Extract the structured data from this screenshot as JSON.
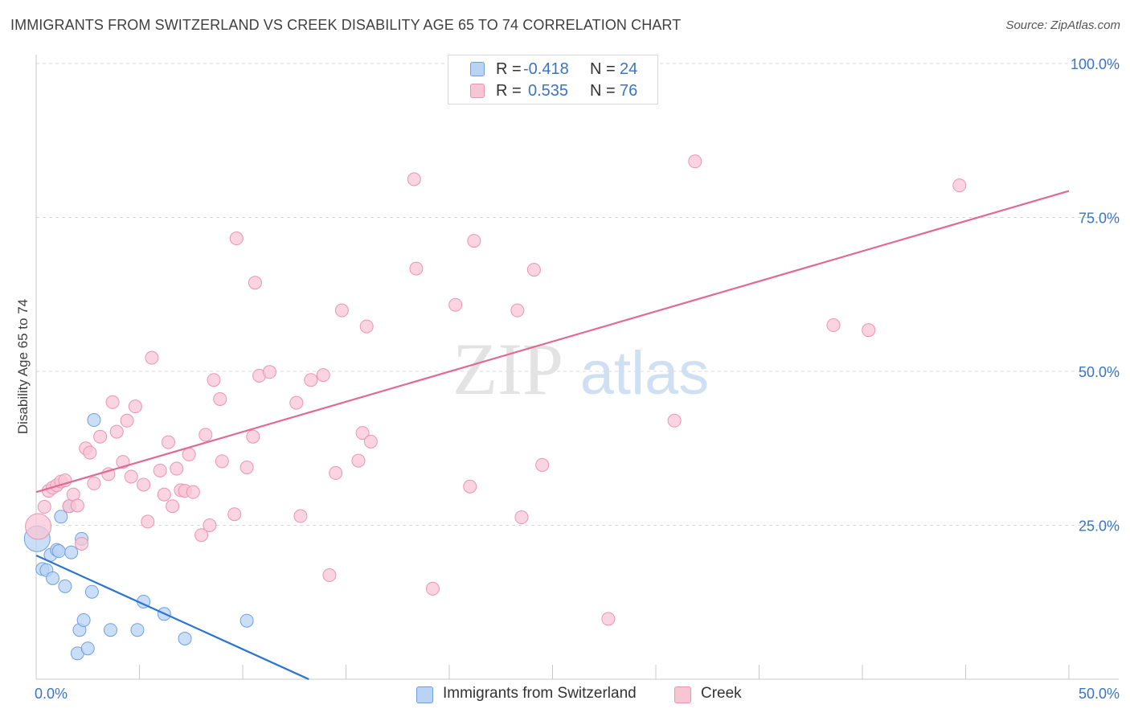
{
  "title": "IMMIGRANTS FROM SWITZERLAND VS CREEK DISABILITY AGE 65 TO 74 CORRELATION CHART",
  "source": "Source: ZipAtlas.com",
  "watermark": {
    "zip": "ZIP",
    "atlas": "atlas"
  },
  "legend": {
    "rows": [
      {
        "r_label": "R =",
        "r_value": "-0.418",
        "n_label": "N =",
        "n_value": "24"
      },
      {
        "r_label": "R =",
        "r_value": "0.535",
        "n_label": "N =",
        "n_value": "76"
      }
    ]
  },
  "colors": {
    "blue_fill": "#b9d3f5",
    "blue_stroke": "#6fa0dd",
    "blue_line": "#2d74d0",
    "pink_fill": "#f8c5d5",
    "pink_stroke": "#eb94b2",
    "pink_line": "#e06a95",
    "tick_text": "#3a74c4",
    "grid": "#d9d9d9"
  },
  "chart_data": {
    "type": "scatter",
    "title": "IMMIGRANTS FROM SWITZERLAND VS CREEK DISABILITY AGE 65 TO 74 CORRELATION CHART",
    "xlabel": "",
    "ylabel": "Disability Age 65 to 74",
    "xlim": [
      0,
      50
    ],
    "ylim": [
      0,
      100
    ],
    "x_tick_labels": [
      "0.0%",
      "50.0%"
    ],
    "y_ticks": [
      25,
      50,
      75,
      100
    ],
    "y_tick_labels": [
      "25.0%",
      "50.0%",
      "75.0%",
      "100.0%"
    ],
    "grid": true,
    "legend_position": "top-center",
    "series": [
      {
        "name": "Immigrants from Switzerland",
        "r": -0.418,
        "n": 24,
        "trend": {
          "x": [
            0,
            13.2
          ],
          "y": [
            20.1,
            0
          ]
        },
        "points": [
          [
            0.05,
            22.8
          ],
          [
            0.3,
            17.9
          ],
          [
            0.5,
            17.7
          ],
          [
            0.7,
            20.2
          ],
          [
            0.8,
            16.4
          ],
          [
            1.0,
            21.0
          ],
          [
            1.1,
            20.8
          ],
          [
            1.2,
            26.4
          ],
          [
            1.4,
            15.1
          ],
          [
            1.6,
            28.1
          ],
          [
            1.7,
            20.6
          ],
          [
            2.0,
            4.2
          ],
          [
            2.1,
            8.0
          ],
          [
            2.2,
            22.8
          ],
          [
            2.3,
            9.6
          ],
          [
            2.5,
            5.0
          ],
          [
            2.7,
            14.2
          ],
          [
            2.8,
            42.1
          ],
          [
            3.6,
            8.0
          ],
          [
            4.9,
            8.0
          ],
          [
            5.2,
            12.6
          ],
          [
            6.2,
            10.6
          ],
          [
            7.2,
            6.6
          ],
          [
            10.2,
            9.5
          ]
        ]
      },
      {
        "name": "Creek",
        "r": 0.535,
        "n": 76,
        "trend": {
          "x": [
            0,
            50
          ],
          "y": [
            30.4,
            79.3
          ]
        },
        "points": [
          [
            0.1,
            24.8
          ],
          [
            0.4,
            28.0
          ],
          [
            0.6,
            30.6
          ],
          [
            0.8,
            31.1
          ],
          [
            1.0,
            31.5
          ],
          [
            1.2,
            32.1
          ],
          [
            1.4,
            32.3
          ],
          [
            1.6,
            28.1
          ],
          [
            1.8,
            30.0
          ],
          [
            2.0,
            28.2
          ],
          [
            2.2,
            22.0
          ],
          [
            2.4,
            37.5
          ],
          [
            2.6,
            36.8
          ],
          [
            2.8,
            31.8
          ],
          [
            3.1,
            39.4
          ],
          [
            3.5,
            33.3
          ],
          [
            3.7,
            45.0
          ],
          [
            3.9,
            40.2
          ],
          [
            4.2,
            35.3
          ],
          [
            4.4,
            42.0
          ],
          [
            4.6,
            32.9
          ],
          [
            4.8,
            44.3
          ],
          [
            5.2,
            31.6
          ],
          [
            5.4,
            25.6
          ],
          [
            5.6,
            52.2
          ],
          [
            6.0,
            33.9
          ],
          [
            6.2,
            30.0
          ],
          [
            6.4,
            38.5
          ],
          [
            6.6,
            28.1
          ],
          [
            6.8,
            34.2
          ],
          [
            7.0,
            30.7
          ],
          [
            7.2,
            30.6
          ],
          [
            7.4,
            36.5
          ],
          [
            7.6,
            30.4
          ],
          [
            8.0,
            23.4
          ],
          [
            8.2,
            39.7
          ],
          [
            8.4,
            25.0
          ],
          [
            8.6,
            48.6
          ],
          [
            8.9,
            45.5
          ],
          [
            9.0,
            35.4
          ],
          [
            9.6,
            26.8
          ],
          [
            9.7,
            71.6
          ],
          [
            10.2,
            34.4
          ],
          [
            10.5,
            39.4
          ],
          [
            10.6,
            64.4
          ],
          [
            10.8,
            49.3
          ],
          [
            11.3,
            49.9
          ],
          [
            12.6,
            44.9
          ],
          [
            12.8,
            26.5
          ],
          [
            13.3,
            48.6
          ],
          [
            13.9,
            49.4
          ],
          [
            14.2,
            16.9
          ],
          [
            14.5,
            33.5
          ],
          [
            14.8,
            59.9
          ],
          [
            15.6,
            35.5
          ],
          [
            15.8,
            40.0
          ],
          [
            16.0,
            57.3
          ],
          [
            16.2,
            38.6
          ],
          [
            18.3,
            81.2
          ],
          [
            18.4,
            66.7
          ],
          [
            19.2,
            14.7
          ],
          [
            20.3,
            60.8
          ],
          [
            21.0,
            31.3
          ],
          [
            21.2,
            71.2
          ],
          [
            23.3,
            59.9
          ],
          [
            23.5,
            26.3
          ],
          [
            24.1,
            66.5
          ],
          [
            24.5,
            34.8
          ],
          [
            27.7,
            9.8
          ],
          [
            28.7,
            100.2
          ],
          [
            30.9,
            42.0
          ],
          [
            31.9,
            84.1
          ],
          [
            38.6,
            57.5
          ],
          [
            40.3,
            56.7
          ],
          [
            44.7,
            80.2
          ],
          [
            24.3,
            100.1
          ]
        ]
      }
    ]
  }
}
